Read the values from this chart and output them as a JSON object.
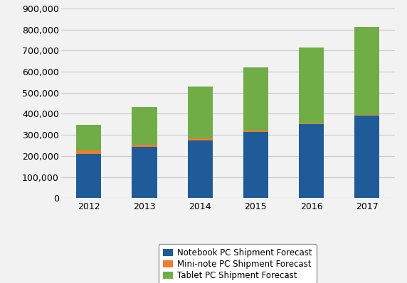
{
  "years": [
    "2012",
    "2013",
    "2014",
    "2015",
    "2016",
    "2017"
  ],
  "notebook": [
    210000,
    245000,
    275000,
    315000,
    350000,
    390000
  ],
  "mininote": [
    18000,
    8000,
    8000,
    7000,
    5000,
    5000
  ],
  "tablet": [
    120000,
    180000,
    245000,
    298000,
    360000,
    418000
  ],
  "colors": {
    "notebook": "#1f5b99",
    "mininote": "#ed7d31",
    "tablet": "#70ad47"
  },
  "legend_labels": [
    "Notebook PC Shipment Forecast",
    "Mini-note PC Shipment Forecast",
    "Tablet PC Shipment Forecast"
  ],
  "ylim": [
    0,
    900000
  ],
  "ytick_step": 100000,
  "background_color": "#f2f2f2",
  "plot_area_color": "#f2f2f2"
}
